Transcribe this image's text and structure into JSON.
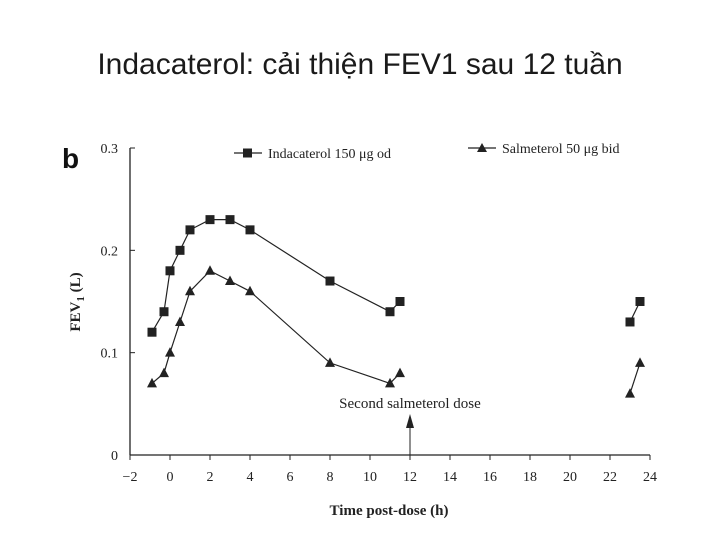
{
  "slide": {
    "title": "Indacaterol: cải thiện FEV1 sau 12 tuần"
  },
  "chart_data": {
    "type": "line",
    "panel_label": "b",
    "xlabel": "Time post-dose (h)",
    "ylabel_main": "FEV",
    "ylabel_sub": "1",
    "ylabel_tail": " (L)",
    "xlim": [
      -2,
      24
    ],
    "ylim": [
      0,
      0.3
    ],
    "xticks": [
      -2,
      0,
      2,
      4,
      6,
      8,
      10,
      12,
      14,
      16,
      18,
      20,
      22,
      24
    ],
    "xtick_labels": [
      "−2",
      "0",
      "2",
      "4",
      "6",
      "8",
      "10",
      "12",
      "14",
      "16",
      "18",
      "20",
      "22",
      "24"
    ],
    "yticks": [
      0,
      0.1,
      0.2,
      0.3
    ],
    "ytick_labels": [
      "0",
      "0.1",
      "0.2",
      "0.3"
    ],
    "grid": false,
    "legend_position": "top",
    "series": [
      {
        "name": "Indacaterol 150 μg od",
        "marker": "square",
        "segments": [
          [
            [
              -0.9,
              0.12
            ],
            [
              -0.3,
              0.14
            ],
            [
              0.0,
              0.18
            ],
            [
              0.5,
              0.2
            ],
            [
              1.0,
              0.22
            ],
            [
              2.0,
              0.23
            ],
            [
              3.0,
              0.23
            ],
            [
              4.0,
              0.22
            ],
            [
              8.0,
              0.17
            ],
            [
              11.0,
              0.14
            ],
            [
              11.5,
              0.15
            ]
          ],
          [
            [
              23.0,
              0.13
            ],
            [
              23.5,
              0.15
            ]
          ]
        ]
      },
      {
        "name": "Salmeterol 50 μg bid",
        "marker": "triangle",
        "segments": [
          [
            [
              -0.9,
              0.07
            ],
            [
              -0.3,
              0.08
            ],
            [
              0.0,
              0.1
            ],
            [
              0.5,
              0.13
            ],
            [
              1.0,
              0.16
            ],
            [
              2.0,
              0.18
            ],
            [
              3.0,
              0.17
            ],
            [
              4.0,
              0.16
            ],
            [
              8.0,
              0.09
            ],
            [
              11.0,
              0.07
            ],
            [
              11.5,
              0.08
            ]
          ],
          [
            [
              23.0,
              0.06
            ],
            [
              23.5,
              0.09
            ]
          ]
        ]
      }
    ],
    "annotation": {
      "text": "Second salmeterol dose",
      "x": 12
    }
  }
}
